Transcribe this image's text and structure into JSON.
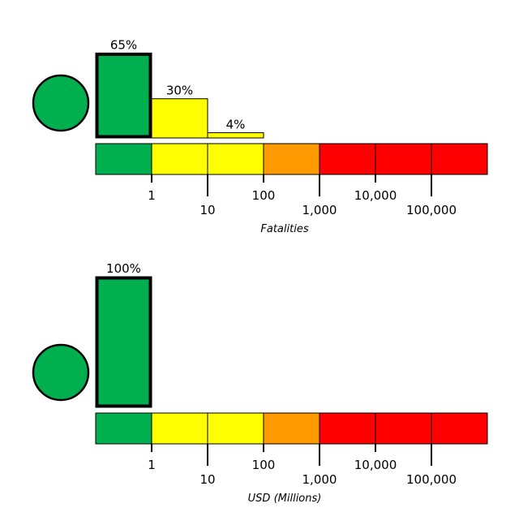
{
  "chart_data": [
    {
      "type": "bar",
      "xlabel": "Fatalities",
      "alert_color": "#00B04F",
      "categories": [
        "<1",
        "1-10",
        "10-100",
        "100-1,000",
        "1,000-10,000",
        "10,000-100,000",
        ">100,000"
      ],
      "values": [
        65,
        30,
        4,
        0,
        0,
        0,
        0
      ],
      "value_labels": [
        "65%",
        "30%",
        "4%",
        "",
        "",
        "",
        ""
      ],
      "bin_colors": [
        "#00B04F",
        "#FFFF00",
        "#FFFF00",
        "#FF9900",
        "#FF0000",
        "#FF0000",
        "#FF0000"
      ],
      "tick_labels": [
        "1",
        "10",
        "100",
        "1,000",
        "10,000",
        "100,000"
      ],
      "ylim": [
        0,
        100
      ]
    },
    {
      "type": "bar",
      "xlabel": "USD (Millions)",
      "alert_color": "#00B04F",
      "categories": [
        "<1",
        "1-10",
        "10-100",
        "100-1,000",
        "1,000-10,000",
        "10,000-100,000",
        ">100,000"
      ],
      "values": [
        100,
        0,
        0,
        0,
        0,
        0,
        0
      ],
      "value_labels": [
        "100%",
        "",
        "",
        "",
        "",
        "",
        ""
      ],
      "bin_colors": [
        "#00B04F",
        "#FFFF00",
        "#FFFF00",
        "#FF9900",
        "#FF0000",
        "#FF0000",
        "#FF0000"
      ],
      "tick_labels": [
        "1",
        "10",
        "100",
        "1,000",
        "10,000",
        "100,000"
      ],
      "ylim": [
        0,
        100
      ]
    }
  ]
}
